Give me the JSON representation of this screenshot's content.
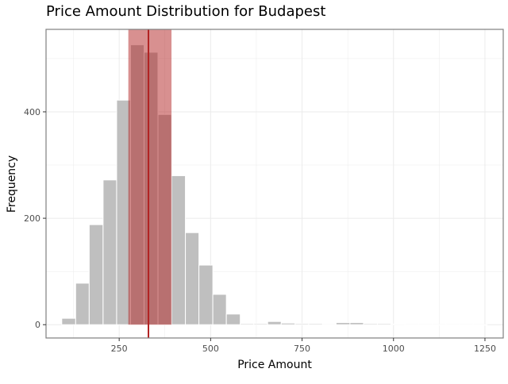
{
  "chart_data": {
    "type": "bar",
    "title": "Price Amount Distribution for Budapest",
    "xlabel": "Price Amount",
    "ylabel": "Frequency",
    "xlim": [
      50,
      1300
    ],
    "ylim": [
      -25,
      555
    ],
    "xticks": [
      250,
      500,
      750,
      1000,
      1250
    ],
    "yticks": [
      0,
      200,
      400
    ],
    "bin_width": 37.5,
    "bins": [
      {
        "x0": 93,
        "x1": 131,
        "count": 12
      },
      {
        "x0": 131,
        "x1": 168,
        "count": 78
      },
      {
        "x0": 168,
        "x1": 206,
        "count": 188
      },
      {
        "x0": 206,
        "x1": 243,
        "count": 272
      },
      {
        "x0": 243,
        "x1": 281,
        "count": 422
      },
      {
        "x0": 281,
        "x1": 318,
        "count": 526
      },
      {
        "x0": 318,
        "x1": 356,
        "count": 512
      },
      {
        "x0": 356,
        "x1": 393,
        "count": 395
      },
      {
        "x0": 393,
        "x1": 431,
        "count": 280
      },
      {
        "x0": 431,
        "x1": 468,
        "count": 173
      },
      {
        "x0": 468,
        "x1": 506,
        "count": 112
      },
      {
        "x0": 506,
        "x1": 543,
        "count": 57
      },
      {
        "x0": 543,
        "x1": 581,
        "count": 20
      },
      {
        "x0": 581,
        "x1": 618,
        "count": 2
      },
      {
        "x0": 618,
        "x1": 656,
        "count": 2
      },
      {
        "x0": 656,
        "x1": 693,
        "count": 6
      },
      {
        "x0": 693,
        "x1": 731,
        "count": 3
      },
      {
        "x0": 731,
        "x1": 768,
        "count": 2
      },
      {
        "x0": 768,
        "x1": 806,
        "count": 2
      },
      {
        "x0": 806,
        "x1": 843,
        "count": 0
      },
      {
        "x0": 843,
        "x1": 881,
        "count": 4
      },
      {
        "x0": 881,
        "x1": 918,
        "count": 4
      },
      {
        "x0": 918,
        "x1": 956,
        "count": 2
      },
      {
        "x0": 956,
        "x1": 993,
        "count": 2
      },
      {
        "x0": 993,
        "x1": 1031,
        "count": 1
      },
      {
        "x0": 1031,
        "x1": 1068,
        "count": 0
      },
      {
        "x0": 1068,
        "x1": 1106,
        "count": 0
      },
      {
        "x0": 1106,
        "x1": 1143,
        "count": 0
      },
      {
        "x0": 1143,
        "x1": 1181,
        "count": 0
      },
      {
        "x0": 1181,
        "x1": 1218,
        "count": 0
      },
      {
        "x0": 1218,
        "x1": 1256,
        "count": 0
      }
    ],
    "highlight_band": {
      "x0": 275,
      "x1": 393
    },
    "vline": {
      "x": 330
    },
    "colors": {
      "bar_fill": "#bfbfbf",
      "bar_stroke": "#ffffff",
      "band_fill": "#b22222",
      "vline": "#b22222",
      "grid": "#ebebeb",
      "panel_border": "#7f7f7f",
      "text": "#000000",
      "tick_text": "#4d4d4d"
    },
    "grid": true,
    "legend": "none"
  }
}
